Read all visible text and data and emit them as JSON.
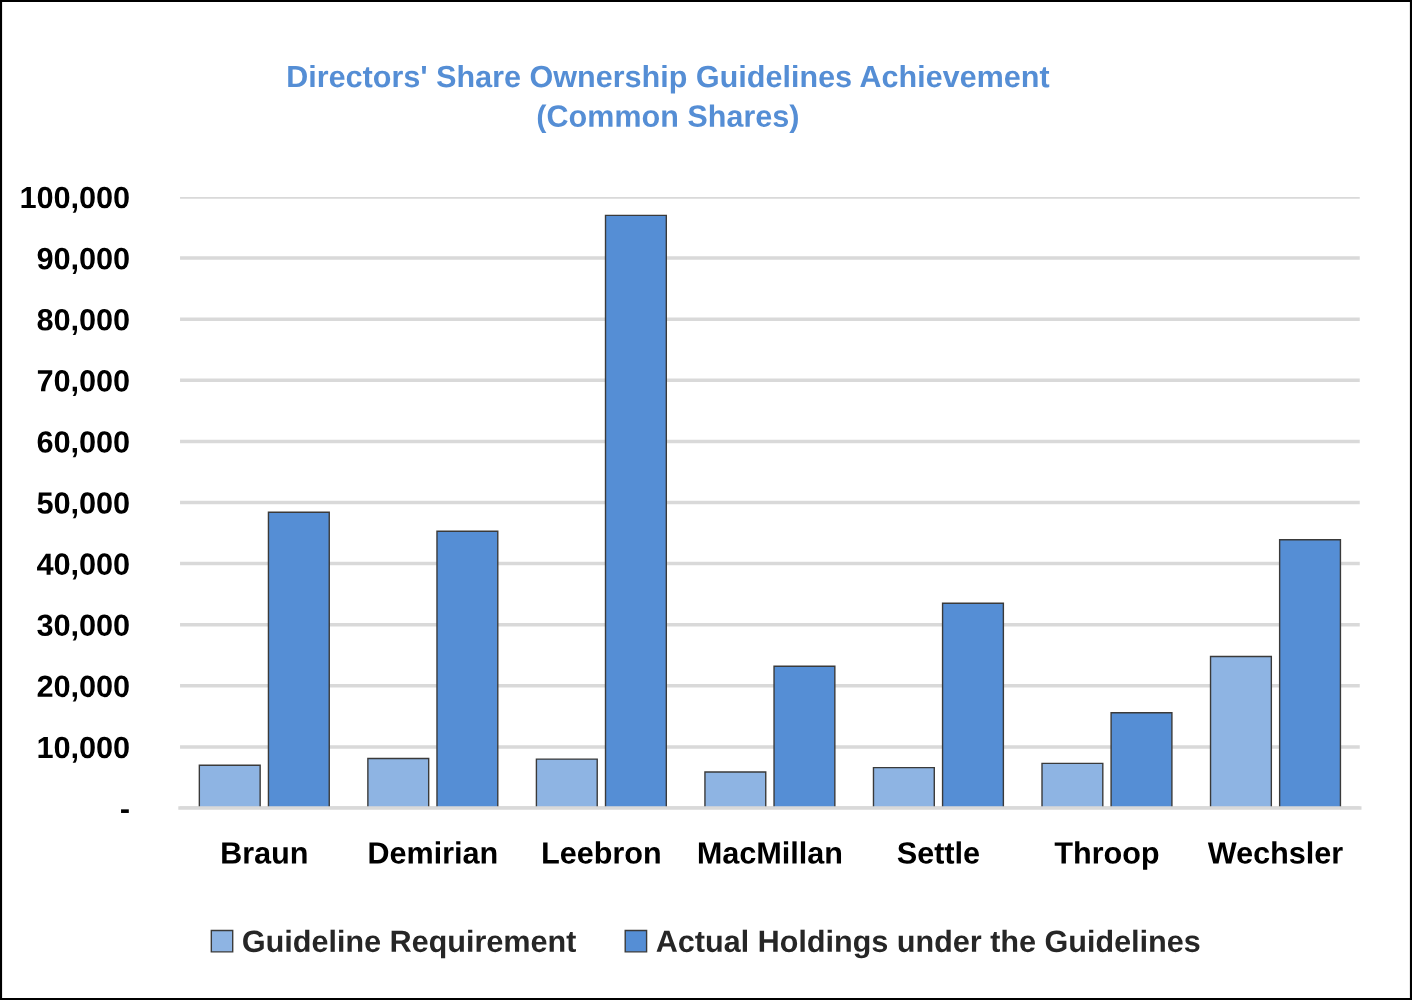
{
  "chart_data": {
    "type": "bar",
    "title": "Directors' Share Ownership Guidelines Achievement\n(Common Shares)",
    "categories": [
      "Braun",
      "Demirian",
      "Leebron",
      "MacMillan",
      "Settle",
      "Throop",
      "Wechsler"
    ],
    "series": [
      {
        "name": "Guideline Requirement",
        "color": "#8eb4e3",
        "values": [
          7000,
          8100,
          8000,
          5900,
          6600,
          7300,
          24800
        ]
      },
      {
        "name": "Actual Holdings under the Guidelines",
        "color": "#558ed5",
        "values": [
          48400,
          45300,
          97000,
          23200,
          33500,
          15600,
          43900
        ]
      }
    ],
    "ylim": [
      0,
      100000
    ],
    "yticks": [
      {
        "value": 0,
        "label": "-"
      },
      {
        "value": 10000,
        "label": "10,000"
      },
      {
        "value": 20000,
        "label": "20,000"
      },
      {
        "value": 30000,
        "label": "30,000"
      },
      {
        "value": 40000,
        "label": "40,000"
      },
      {
        "value": 50000,
        "label": "50,000"
      },
      {
        "value": 60000,
        "label": "60,000"
      },
      {
        "value": 70000,
        "label": "70,000"
      },
      {
        "value": 80000,
        "label": "80,000"
      },
      {
        "value": 90000,
        "label": "90,000"
      },
      {
        "value": 100000,
        "label": "100,000"
      }
    ],
    "grid": "y",
    "legend": "bottom"
  }
}
